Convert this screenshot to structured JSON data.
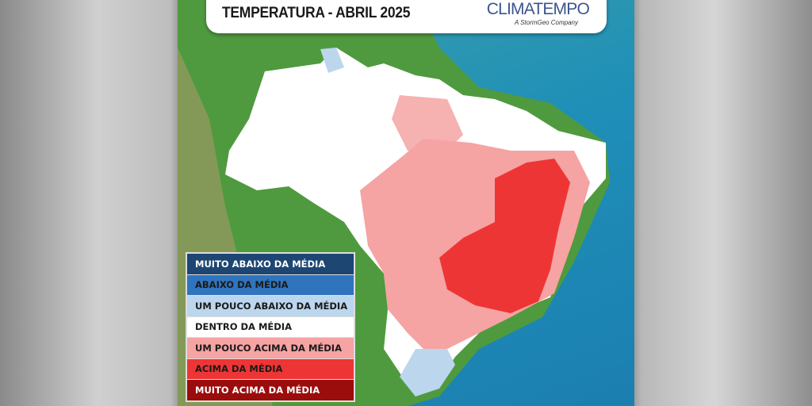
{
  "header": {
    "title": "TEMPERATURA - ABRIL 2025",
    "logo": "CLIMATEMPO",
    "logo_tagline": "A StormGeo Company"
  },
  "legend": [
    {
      "label": "MUITO ABAIXO DA MÉDIA",
      "color": "#1d4673",
      "text_color": "#ffffff"
    },
    {
      "label": "ABAIXO DA MÉDIA",
      "color": "#2f74bd",
      "text_color": "#1a1a1a"
    },
    {
      "label": "UM POUCO ABAIXO DA MÉDIA",
      "color": "#bcd6ee",
      "text_color": "#1a1a1a"
    },
    {
      "label": "DENTRO DA MÉDIA",
      "color": "#ffffff",
      "text_color": "#1a1a1a"
    },
    {
      "label": "UM POUCO ACIMA DA MÉDIA",
      "color": "#f5a3a3",
      "text_color": "#1a1a1a"
    },
    {
      "label": "ACIMA DA MÉDIA",
      "color": "#ee3535",
      "text_color": "#1a1a1a"
    },
    {
      "label": "MUITO ACIMA DA MÉDIA",
      "color": "#9b0c0c",
      "text_color": "#ffffff"
    }
  ]
}
